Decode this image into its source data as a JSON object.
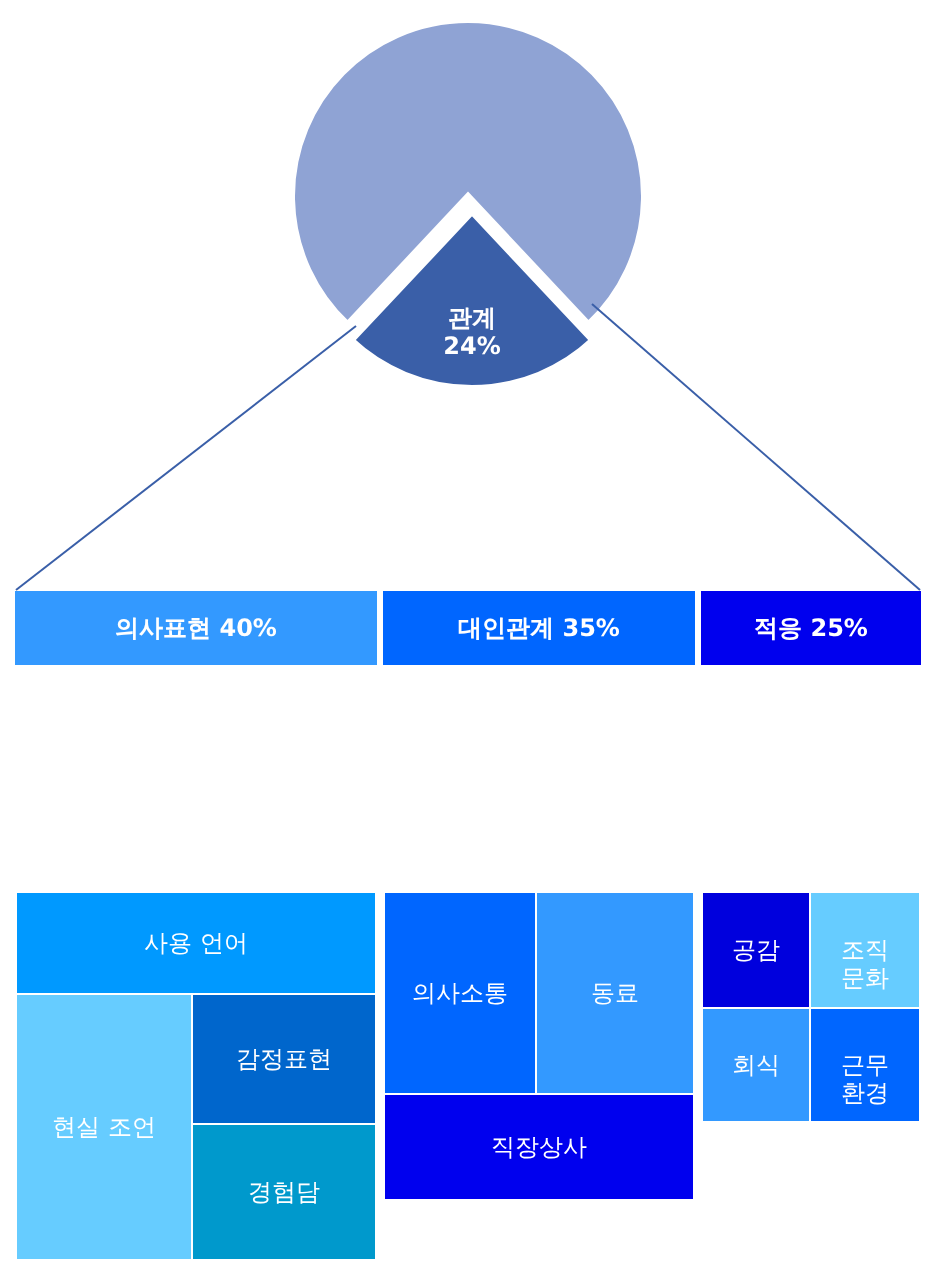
{
  "chart_data": [
    {
      "type": "pie",
      "categories": [
        "관계",
        null
      ],
      "values": [
        24,
        76
      ],
      "colors": [
        "#3a5fa8",
        "#8fa3d4"
      ],
      "value_labels": [
        "24%",
        null
      ]
    },
    {
      "type": "other",
      "title": "의사표현 40%",
      "color": "#3399ff",
      "annotations": [
        "사용 언어",
        "현실 조언",
        "감정표현",
        "경험담"
      ],
      "colors": [
        "#0099ff",
        "#66ccff",
        "#0066cc",
        "#0099cc"
      ]
    },
    {
      "type": "other",
      "title": "대인관계 35%",
      "color": "#0066ff",
      "annotations": [
        "의사소통",
        "동료",
        "직장상사"
      ],
      "colors": [
        "#0066ff",
        "#3399ff",
        "#0000ee"
      ]
    },
    {
      "type": "other",
      "title": "적응 25%",
      "color": "#0000ee",
      "annotations": [
        "공감",
        "조직문화",
        "회식",
        "근무환경"
      ],
      "colors": [
        "#0000dd",
        "#66ccff",
        "#3399ff",
        "#0066ff"
      ]
    }
  ]
}
